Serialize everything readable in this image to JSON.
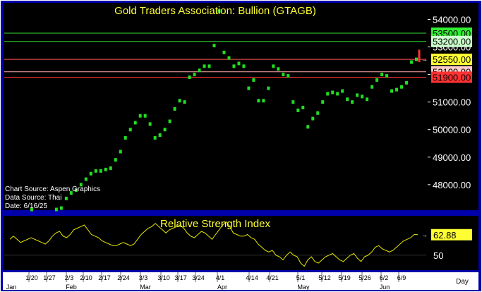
{
  "chart_data": [
    {
      "type": "scatter",
      "title": "Gold Traders Association: Bullion (GTAGB)",
      "ylim": [
        47100,
        54550
      ],
      "yticks": [
        54000,
        53000,
        52000,
        51000,
        50000,
        49000,
        48000
      ],
      "ytick_labels": [
        "54000.00",
        "53000.00",
        "52000.00",
        "51000.00",
        "50000.00",
        "49000.00",
        "48000.00"
      ],
      "levels": [
        {
          "label": "53500.00",
          "value": 53500,
          "color": "#33dd33",
          "box": "#33ee33"
        },
        {
          "label": "53200.00",
          "value": 53200,
          "color": "#33dd33",
          "box": "#ccffcc"
        },
        {
          "label": "52550.00",
          "value": 52550,
          "color": "#ff5555",
          "box": "#ffff33"
        },
        {
          "label": "52100.00",
          "value": 52100,
          "color": "#ffaaaa",
          "box": "#ffcccc"
        },
        {
          "label": "51900.00",
          "value": 51900,
          "color": "#ff3333",
          "box": "#ff3333"
        }
      ],
      "series": [
        {
          "values": [
            46900,
            47000,
            47000,
            47100,
            47050,
            47000,
            47000,
            47050,
            47100,
            47150,
            47500,
            47700,
            47800,
            48000,
            48200,
            48400,
            48500,
            48500,
            48550,
            48600,
            48900,
            49200,
            49700,
            50000,
            50250,
            50500,
            50500,
            50200,
            49700,
            49800,
            50000,
            50300,
            50750,
            51050,
            51000,
            51900,
            52000,
            52150,
            52300,
            52300,
            53050,
            54300,
            52800,
            52600,
            52300,
            52400,
            52300,
            51500,
            51800,
            51050,
            51050,
            51500,
            52300,
            52200,
            52000,
            51950,
            51000,
            50700,
            50800,
            50100,
            50400,
            50600,
            51000,
            51300,
            51350,
            51300,
            51400,
            51100,
            51000,
            51250,
            51200,
            51100,
            51550,
            51800,
            52000,
            51950,
            51400,
            51450,
            51550,
            51700,
            52450,
            52550
          ]
        }
      ],
      "last_bar": {
        "high": 52900,
        "low": 52450
      }
    },
    {
      "type": "line",
      "title": "Relative Strength Index",
      "ylim": [
        41,
        73
      ],
      "yticks": [
        50
      ],
      "ytick_labels": [
        "50"
      ],
      "last_label": "62.88",
      "series": [
        {
          "values": [
            60,
            62,
            60,
            58,
            59,
            60,
            61,
            60,
            59,
            58,
            57,
            59,
            62,
            64,
            65,
            62,
            61,
            63,
            66,
            67,
            68,
            69,
            66,
            63,
            62,
            61,
            59,
            58,
            57,
            56,
            56,
            57,
            58,
            57,
            56,
            57,
            60,
            63,
            65,
            67,
            68,
            70,
            68,
            66,
            64,
            66,
            67,
            68,
            69,
            67,
            64,
            62,
            61,
            63,
            65,
            64,
            62,
            60,
            63,
            66,
            69,
            71,
            68,
            64,
            63,
            62,
            62,
            63,
            61,
            60,
            57,
            55,
            53,
            52,
            53,
            50,
            49,
            47,
            50,
            52,
            50,
            49,
            45,
            43,
            47,
            49,
            46,
            45,
            47,
            49,
            50,
            51,
            49,
            47,
            46,
            48,
            50,
            51,
            48,
            46,
            49,
            50,
            52,
            55,
            56,
            54,
            53,
            52,
            53,
            55,
            57,
            59,
            60,
            61,
            63,
            62.88
          ]
        }
      ]
    }
  ],
  "x_axis": {
    "week_labels": [
      "1/20",
      "1/27",
      "2/3",
      "2/10",
      "2/17",
      "2/24",
      "3/3",
      "3/10",
      "3/17",
      "3/24",
      "4/1",
      "4/14",
      "4/21",
      "5/1",
      "5/12",
      "5/19",
      "5/26",
      "6/2",
      "6/9"
    ],
    "month_labels": [
      "Jan",
      "Feb",
      "Mar",
      "Apr",
      "May",
      "Jun"
    ],
    "unit_label": "Day"
  },
  "info": {
    "line1": "Chart Source: Aspen Graphics",
    "line2": "Data Source: Thai",
    "line3": "Date: 6/16/25"
  },
  "colors": {
    "background": "#000000",
    "frame": "#0000aa",
    "up_bar": "#22dd22",
    "down_bar": "#ff3333",
    "rsi": "#e6e600",
    "title": "#ffff33",
    "axis_text": "#ffffff"
  }
}
